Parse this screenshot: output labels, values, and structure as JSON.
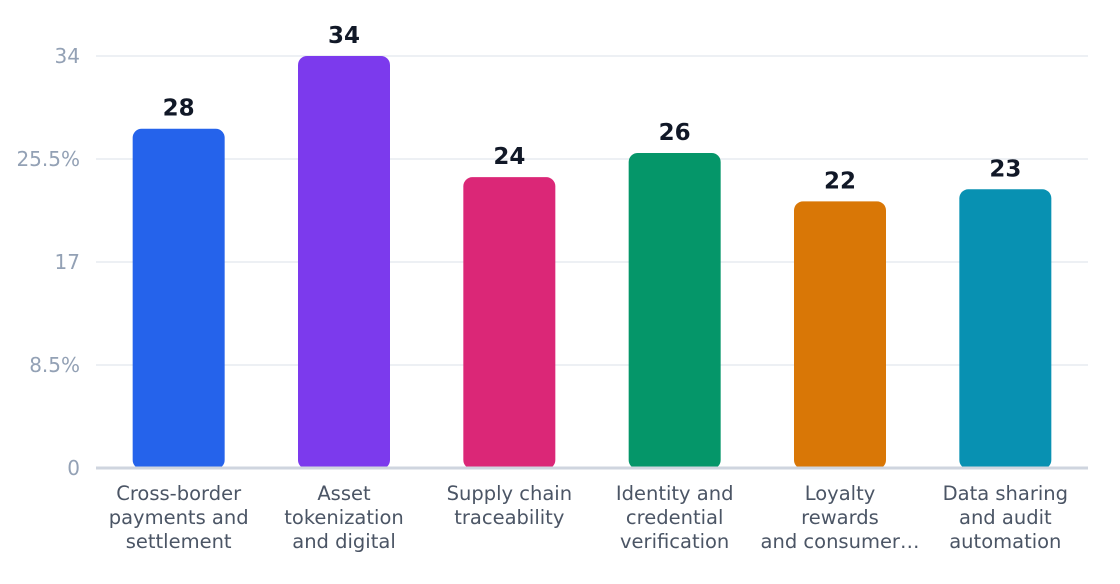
{
  "chart_data": {
    "type": "bar",
    "title": "",
    "xlabel": "",
    "ylabel": "",
    "ylim": [
      0,
      34
    ],
    "y_ticks": [
      {
        "value": 0,
        "label": "0"
      },
      {
        "value": 8.5,
        "label": "8.5%"
      },
      {
        "value": 17,
        "label": "17"
      },
      {
        "value": 25.5,
        "label": "25.5%"
      },
      {
        "value": 34,
        "label": "34"
      }
    ],
    "grid": true,
    "legend": "none",
    "categories": [
      [
        "Cross-border",
        "payments and",
        "settlement"
      ],
      [
        "Asset",
        "tokenization",
        "and digital"
      ],
      [
        "Supply chain",
        "traceability"
      ],
      [
        "Identity and",
        "credential",
        "verification"
      ],
      [
        "Loyalty",
        "rewards",
        "and consumer…"
      ],
      [
        "Data sharing",
        "and audit",
        "automation"
      ]
    ],
    "values": [
      28,
      34,
      24,
      26,
      22,
      23
    ],
    "data_labels": [
      "28",
      "34",
      "24",
      "26",
      "22",
      "23"
    ],
    "colors": [
      "#2563eb",
      "#7c3aed",
      "#db2777",
      "#059669",
      "#d97706",
      "#0891b2"
    ]
  }
}
